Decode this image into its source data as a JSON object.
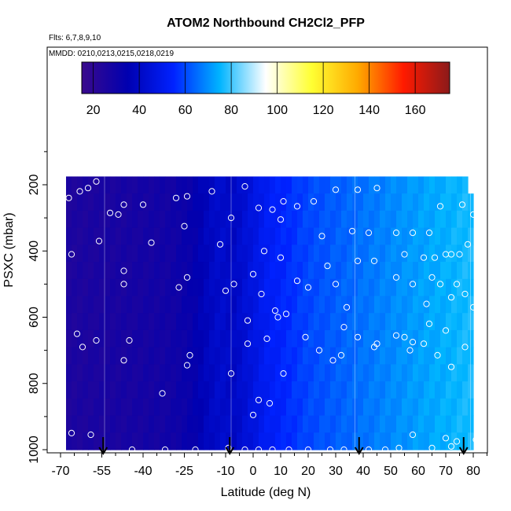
{
  "chart_data": {
    "type": "heatmap",
    "title": "ATOM2 Northbound CH2Cl2_PFP",
    "flights_note": "Flts: 6,7,8,9,10",
    "dates_note": "MMDD: 0210,0213,0215,0218,0219",
    "xlabel": "Latitude (deg N)",
    "ylabel": "PSXC (mbar)",
    "xlim": [
      -70,
      90
    ],
    "ylim": [
      1000,
      0
    ],
    "x_ticks": [
      -70,
      -55,
      -40,
      -25,
      -10,
      0,
      10,
      20,
      30,
      40,
      50,
      60,
      70,
      80
    ],
    "x_tick_labels": [
      "-70",
      "-55",
      "-40",
      "-25",
      "-10",
      "0",
      "10",
      "20",
      "30",
      "40",
      "50",
      "60",
      "70",
      "80"
    ],
    "y_ticks": [
      200,
      400,
      600,
      800,
      1000
    ],
    "y_tick_labels": [
      "200",
      "400",
      "600",
      "800",
      "1000"
    ],
    "colorbar": {
      "range": [
        15,
        175
      ],
      "ticks": [
        20,
        40,
        60,
        80,
        100,
        120,
        140,
        160
      ],
      "tick_labels": [
        "20",
        "40",
        "60",
        "80",
        "100",
        "120",
        "140",
        "160"
      ],
      "colors": [
        "#3a0a8c",
        "#0000b0",
        "#0022ff",
        "#00b4ff",
        "#ffffff",
        "#ffff33",
        "#ffaa00",
        "#ff1a00",
        "#8b1a1a"
      ]
    },
    "field": {
      "lat_range": [
        -68,
        80
      ],
      "pressure_range": [
        175,
        1000
      ],
      "lat_nodes": [
        -68,
        -45,
        -30,
        -22,
        -17,
        -12,
        -7,
        -2,
        5,
        20,
        40,
        60,
        80
      ],
      "value_nodes": [
        25,
        27,
        29,
        33,
        38,
        42,
        40,
        45,
        52,
        60,
        66,
        72,
        77
      ]
    },
    "flight_paths": [
      {
        "lat": -54,
        "pmin": 175
      },
      {
        "lat": -8,
        "pmin": 175
      },
      {
        "lat": 37,
        "pmin": 175
      },
      {
        "lat": 79,
        "pmin": 175
      }
    ],
    "arrows_lat": [
      -54.5,
      -8.5,
      38.5,
      76.5
    ],
    "samples": [
      {
        "lat": -57,
        "p": 190
      },
      {
        "lat": -60,
        "p": 210
      },
      {
        "lat": -63,
        "p": 220
      },
      {
        "lat": -67,
        "p": 240
      },
      {
        "lat": -40,
        "p": 260
      },
      {
        "lat": -47,
        "p": 260
      },
      {
        "lat": -28,
        "p": 240
      },
      {
        "lat": -24,
        "p": 235
      },
      {
        "lat": -15,
        "p": 220
      },
      {
        "lat": -3,
        "p": 205
      },
      {
        "lat": 2,
        "p": 270
      },
      {
        "lat": 7,
        "p": 275
      },
      {
        "lat": 11,
        "p": 250
      },
      {
        "lat": 16,
        "p": 265
      },
      {
        "lat": 22,
        "p": 250
      },
      {
        "lat": 30,
        "p": 215
      },
      {
        "lat": 38,
        "p": 215
      },
      {
        "lat": 45,
        "p": 210
      },
      {
        "lat": 68,
        "p": 265
      },
      {
        "lat": 76,
        "p": 260
      },
      {
        "lat": -52,
        "p": 285
      },
      {
        "lat": -49,
        "p": 290
      },
      {
        "lat": -25,
        "p": 325
      },
      {
        "lat": -8,
        "p": 300
      },
      {
        "lat": 10,
        "p": 305
      },
      {
        "lat": 25,
        "p": 355
      },
      {
        "lat": 36,
        "p": 340
      },
      {
        "lat": 42,
        "p": 345
      },
      {
        "lat": 52,
        "p": 345
      },
      {
        "lat": 58,
        "p": 345
      },
      {
        "lat": 64,
        "p": 345
      },
      {
        "lat": 78,
        "p": 380
      },
      {
        "lat": 80,
        "p": 290
      },
      {
        "lat": -56,
        "p": 370
      },
      {
        "lat": -37,
        "p": 375
      },
      {
        "lat": -12,
        "p": 380
      },
      {
        "lat": 4,
        "p": 400
      },
      {
        "lat": 10,
        "p": 420
      },
      {
        "lat": 27,
        "p": 445
      },
      {
        "lat": 38,
        "p": 430
      },
      {
        "lat": 44,
        "p": 430
      },
      {
        "lat": 55,
        "p": 410
      },
      {
        "lat": 62,
        "p": 420
      },
      {
        "lat": 66,
        "p": 420
      },
      {
        "lat": 70,
        "p": 410
      },
      {
        "lat": 72,
        "p": 410
      },
      {
        "lat": 75,
        "p": 410
      },
      {
        "lat": -66,
        "p": 410
      },
      {
        "lat": -47,
        "p": 460
      },
      {
        "lat": -24,
        "p": 480
      },
      {
        "lat": -7,
        "p": 500
      },
      {
        "lat": 0,
        "p": 470
      },
      {
        "lat": 16,
        "p": 490
      },
      {
        "lat": 20,
        "p": 510
      },
      {
        "lat": 30,
        "p": 500
      },
      {
        "lat": 52,
        "p": 480
      },
      {
        "lat": 58,
        "p": 500
      },
      {
        "lat": 65,
        "p": 480
      },
      {
        "lat": 68,
        "p": 500
      },
      {
        "lat": 74,
        "p": 500
      },
      {
        "lat": -47,
        "p": 500
      },
      {
        "lat": -27,
        "p": 510
      },
      {
        "lat": -10,
        "p": 520
      },
      {
        "lat": 3,
        "p": 530
      },
      {
        "lat": 8,
        "p": 580
      },
      {
        "lat": 12,
        "p": 590
      },
      {
        "lat": 34,
        "p": 570
      },
      {
        "lat": 63,
        "p": 560
      },
      {
        "lat": 72,
        "p": 540
      },
      {
        "lat": 77,
        "p": 530
      },
      {
        "lat": 80,
        "p": 570
      },
      {
        "lat": -2,
        "p": 610
      },
      {
        "lat": 9,
        "p": 600
      },
      {
        "lat": 33,
        "p": 630
      },
      {
        "lat": 38,
        "p": 660
      },
      {
        "lat": 45,
        "p": 680
      },
      {
        "lat": 55,
        "p": 660
      },
      {
        "lat": 64,
        "p": 620
      },
      {
        "lat": 70,
        "p": 640
      },
      {
        "lat": -64,
        "p": 650
      },
      {
        "lat": -62,
        "p": 690
      },
      {
        "lat": -57,
        "p": 670
      },
      {
        "lat": -45,
        "p": 670
      },
      {
        "lat": -23,
        "p": 715
      },
      {
        "lat": -2,
        "p": 680
      },
      {
        "lat": 5,
        "p": 665
      },
      {
        "lat": 19,
        "p": 660
      },
      {
        "lat": 24,
        "p": 700
      },
      {
        "lat": 32,
        "p": 715
      },
      {
        "lat": 44,
        "p": 690
      },
      {
        "lat": 52,
        "p": 655
      },
      {
        "lat": 58,
        "p": 675
      },
      {
        "lat": 62,
        "p": 680
      },
      {
        "lat": 67,
        "p": 715
      },
      {
        "lat": 72,
        "p": 750
      },
      {
        "lat": 77,
        "p": 690
      },
      {
        "lat": -47,
        "p": 730
      },
      {
        "lat": -24,
        "p": 745
      },
      {
        "lat": -8,
        "p": 770
      },
      {
        "lat": 11,
        "p": 770
      },
      {
        "lat": 29,
        "p": 730
      },
      {
        "lat": 57,
        "p": 700
      },
      {
        "lat": -33,
        "p": 830
      },
      {
        "lat": 2,
        "p": 850
      },
      {
        "lat": 6,
        "p": 860
      },
      {
        "lat": 0,
        "p": 895
      },
      {
        "lat": -66,
        "p": 950
      },
      {
        "lat": -59,
        "p": 955
      },
      {
        "lat": 58,
        "p": 955
      },
      {
        "lat": 70,
        "p": 965
      },
      {
        "lat": 74,
        "p": 975
      },
      {
        "lat": 81,
        "p": 970
      },
      {
        "lat": -44,
        "p": 1000
      },
      {
        "lat": -32,
        "p": 1000
      },
      {
        "lat": -21,
        "p": 1000
      },
      {
        "lat": -9,
        "p": 995
      },
      {
        "lat": -3,
        "p": 1000
      },
      {
        "lat": 2,
        "p": 1000
      },
      {
        "lat": 7,
        "p": 1000
      },
      {
        "lat": 13,
        "p": 1000
      },
      {
        "lat": 20,
        "p": 1000
      },
      {
        "lat": 28,
        "p": 1000
      },
      {
        "lat": 33,
        "p": 1000
      },
      {
        "lat": 42,
        "p": 1000
      },
      {
        "lat": 48,
        "p": 1000
      },
      {
        "lat": 53,
        "p": 995
      },
      {
        "lat": 65,
        "p": 995
      },
      {
        "lat": 72,
        "p": 990
      }
    ]
  }
}
